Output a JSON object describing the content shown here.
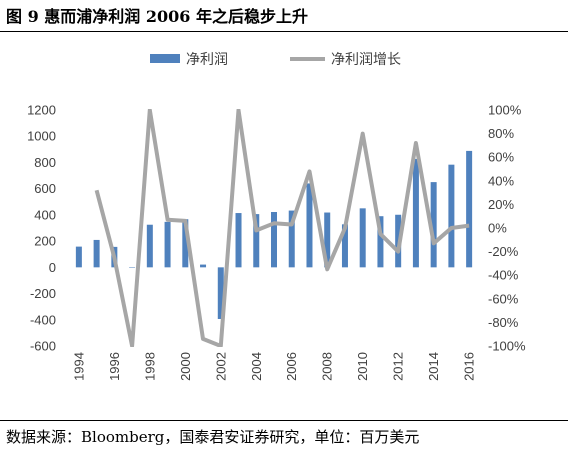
{
  "title": "图 9  惠而浦净利润 2006 年之后稳步上升",
  "source": "数据来源：Bloomberg，国泰君安证券研究，单位：百万美元",
  "colors": {
    "bar": "#4f81bd",
    "line": "#a6a6a6"
  },
  "chart_data": {
    "type": "bar+line",
    "legend": [
      "净利润",
      "净利润增长"
    ],
    "legend_position": "top",
    "grid": false,
    "x": [
      "1994",
      "1995",
      "1996",
      "1997",
      "1998",
      "1999",
      "2000",
      "2001",
      "2002",
      "2003",
      "2004",
      "2005",
      "2006",
      "2007",
      "2008",
      "2009",
      "2010",
      "2011",
      "2012",
      "2013",
      "2014",
      "2015",
      "2016"
    ],
    "x_tick_labels": [
      "1994",
      "1996",
      "1998",
      "2000",
      "2002",
      "2004",
      "2006",
      "2008",
      "2010",
      "2012",
      "2014",
      "2016"
    ],
    "series": [
      {
        "name": "净利润",
        "type": "bar",
        "axis": "left",
        "values": [
          158,
          209,
          156,
          0,
          325,
          347,
          367,
          21,
          -394,
          414,
          406,
          422,
          433,
          640,
          418,
          328,
          450,
          390,
          401,
          827,
          650,
          783,
          888
        ]
      },
      {
        "name": "净利润增长",
        "type": "line",
        "axis": "right",
        "values": [
          null,
          0.32,
          -0.25,
          -1.0,
          1.0,
          0.07,
          0.06,
          -0.94,
          -1.0,
          1.0,
          -0.02,
          0.04,
          0.03,
          0.48,
          -0.35,
          0.0,
          0.8,
          -0.05,
          -0.2,
          0.72,
          -0.13,
          0.0,
          0.02
        ]
      }
    ],
    "y_left": {
      "ylim": [
        -600,
        1200
      ],
      "ticks": [
        1200,
        1000,
        800,
        600,
        400,
        200,
        0,
        -200,
        -400,
        -600
      ]
    },
    "y_right": {
      "ylim": [
        -1.0,
        1.0
      ],
      "ticks": [
        "100%",
        "80%",
        "60%",
        "40%",
        "20%",
        "0%",
        "-20%",
        "-40%",
        "-60%",
        "-80%",
        "-100%"
      ]
    }
  }
}
